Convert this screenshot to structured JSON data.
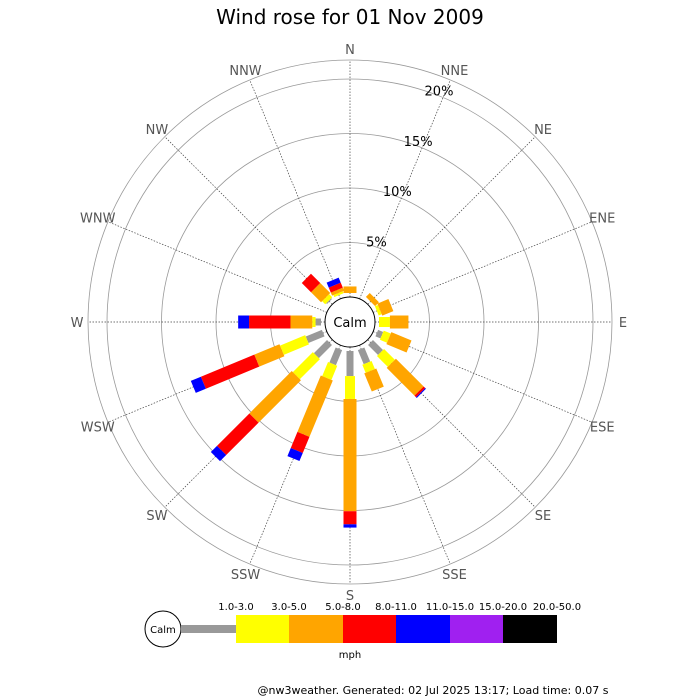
{
  "chart_data": {
    "type": "wind-rose",
    "title": "Wind rose for 01 Nov 2009",
    "directions": [
      "N",
      "NNE",
      "NE",
      "ENE",
      "E",
      "ESE",
      "SE",
      "SSE",
      "S",
      "SSW",
      "SW",
      "WSW",
      "W",
      "WNW",
      "NW",
      "NNW"
    ],
    "rings": [
      "5%",
      "10%",
      "15%",
      "20%"
    ],
    "ring_values": [
      5,
      10,
      15,
      20
    ],
    "center_label": "Calm",
    "unit": "mph",
    "bins": [
      {
        "label": "1.0-3.0",
        "color": "#999999"
      },
      {
        "label": "3.0-5.0",
        "color": "#ffff00"
      },
      {
        "label": "5.0-8.0",
        "color": "#ffa500"
      },
      {
        "label": "8.0-11.0",
        "color": "#ff0000"
      },
      {
        "label": "11.0-15.0",
        "color": "#0000ff"
      },
      {
        "label": "15.0-20.0",
        "color": "#a020f0"
      },
      {
        "label": "20.0-50.0",
        "color": "#000000"
      }
    ],
    "series_percent": {
      "N": [
        0,
        0,
        0.6,
        0,
        0,
        0,
        0
      ],
      "NNE": [
        0,
        0,
        0,
        0,
        0,
        0,
        0
      ],
      "NE": [
        0,
        0,
        0.5,
        0,
        0,
        0,
        0
      ],
      "ENE": [
        0,
        0.3,
        1.1,
        0,
        0,
        0,
        0
      ],
      "E": [
        0,
        1.0,
        1.7,
        0,
        0,
        0,
        0
      ],
      "ESE": [
        0.5,
        0.7,
        2.0,
        0,
        0,
        0,
        0
      ],
      "SE": [
        1.3,
        1.4,
        3.6,
        0.2,
        0.1,
        0,
        0
      ],
      "SSE": [
        1.4,
        0.8,
        1.8,
        0,
        0,
        0,
        0
      ],
      "S": [
        2.3,
        2.1,
        10.3,
        1.2,
        0.3,
        0,
        0
      ],
      "SSW": [
        1.5,
        1.4,
        5.6,
        1.6,
        0.8,
        0,
        0
      ],
      "SW": [
        1.7,
        2.6,
        5.5,
        4.2,
        0.8,
        0,
        0
      ],
      "WSW": [
        1.6,
        2.5,
        2.5,
        5.3,
        1.0,
        0,
        0
      ],
      "W": [
        0.5,
        0.3,
        2.0,
        3.8,
        1.0,
        0,
        0
      ],
      "WNW": [
        0,
        0,
        0,
        0,
        0,
        0,
        0
      ],
      "NW": [
        0.1,
        0.4,
        1.3,
        1.2,
        0,
        0,
        0
      ],
      "NNW": [
        0,
        0.2,
        0.3,
        0.5,
        0.5,
        0,
        0
      ]
    }
  },
  "footer": "@nw3weather. Generated: 02 Jul 2025 13:17; Load time: 0.07 s"
}
